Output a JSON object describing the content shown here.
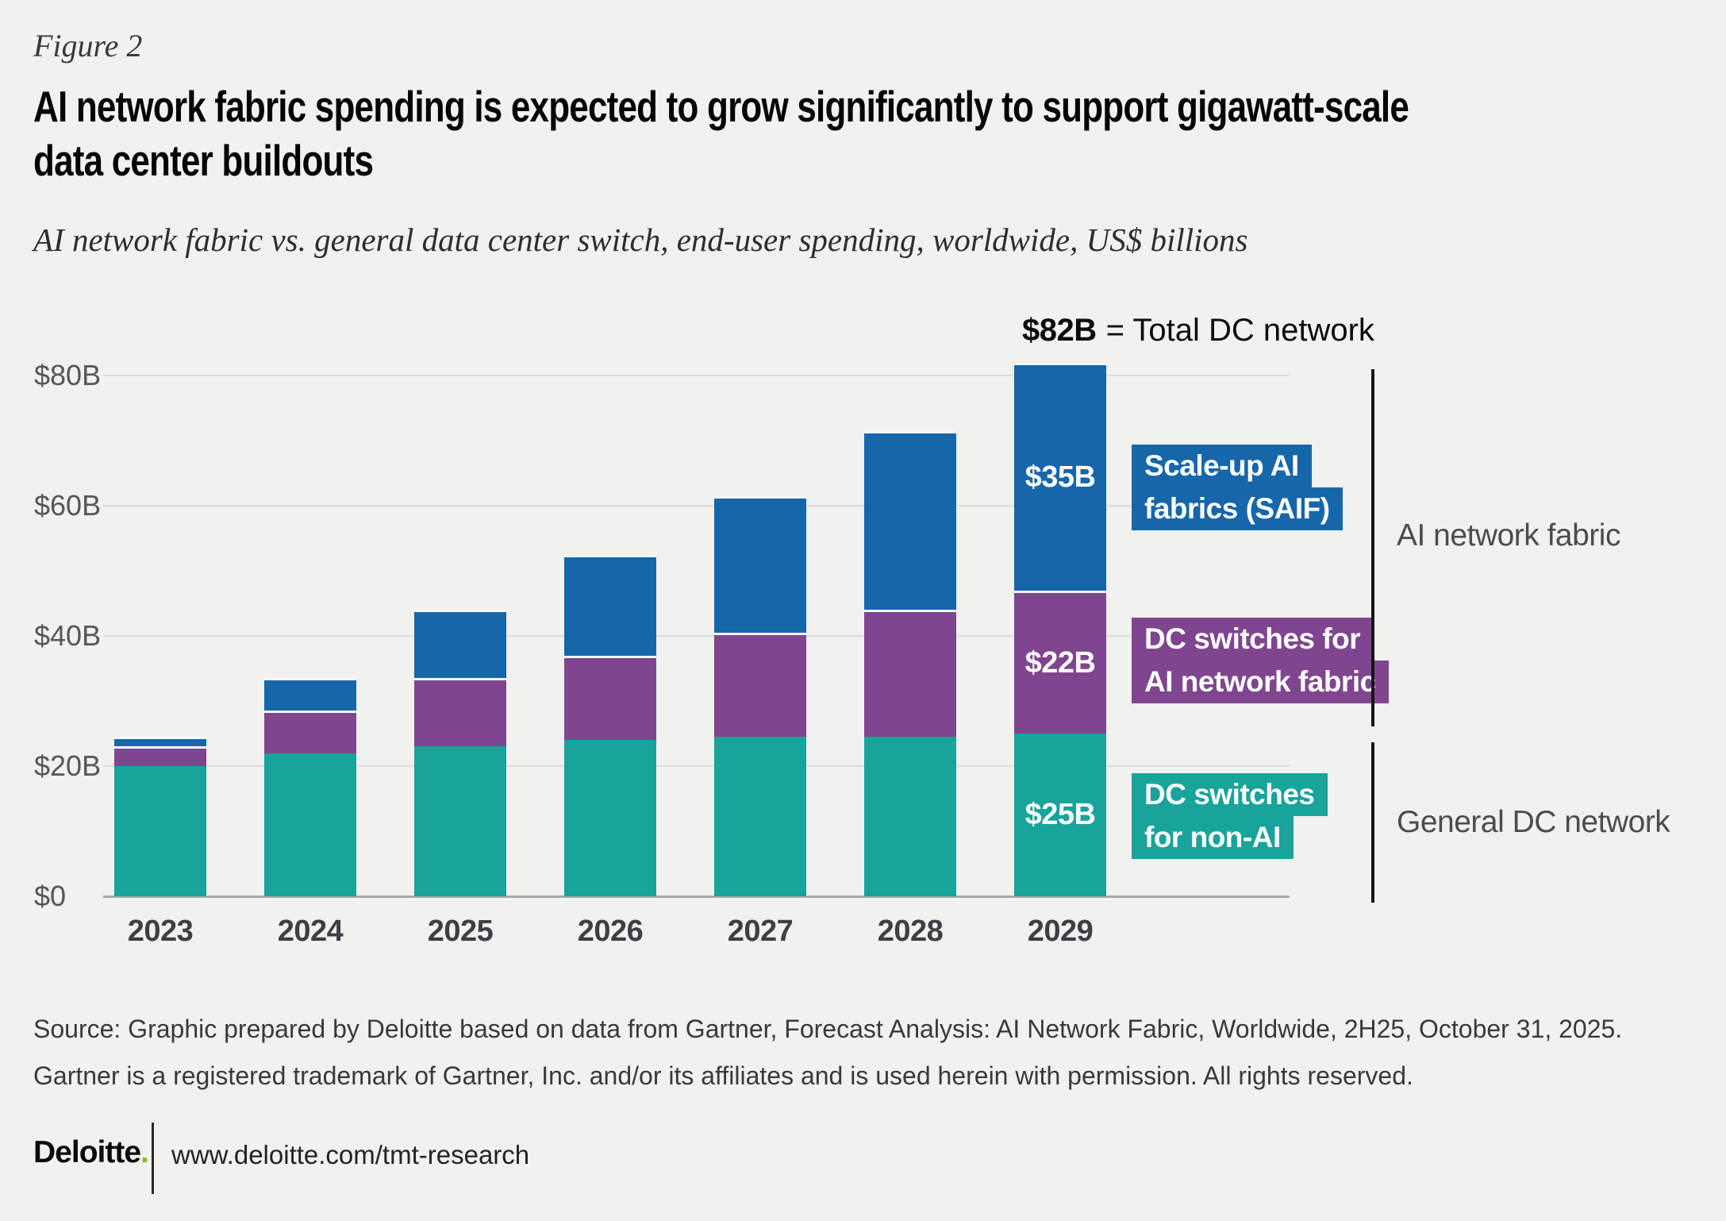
{
  "figure_label": "Figure 2",
  "title_lines": [
    "AI network fabric spending is expected to grow significantly to support gigawatt-scale",
    "data center buildouts"
  ],
  "subtitle": "AI network fabric vs. general data center switch, end-user spending, worldwide, US$ billions",
  "annotation": {
    "value": "$82B",
    "rest": "= Total DC network"
  },
  "chart_data": {
    "type": "bar",
    "stacked": true,
    "title": "AI network fabric vs. general data center switch, end-user spending, worldwide, US$ billions",
    "xlabel": "",
    "ylabel": "US$ billions",
    "ylim": [
      0,
      80
    ],
    "grid": true,
    "categories": [
      "2023",
      "2024",
      "2025",
      "2026",
      "2027",
      "2028",
      "2029"
    ],
    "series": [
      {
        "name": "DC switches for non-AI",
        "color": "#18a39b",
        "values": [
          20,
          22,
          23,
          24,
          24.5,
          24.5,
          25
        ],
        "value_labels": [
          null,
          null,
          null,
          null,
          null,
          null,
          "$25B"
        ]
      },
      {
        "name": "DC switches for AI network fabric",
        "color": "#7f458f",
        "values": [
          3,
          6.5,
          10.5,
          13,
          16,
          19.5,
          22
        ],
        "value_labels": [
          null,
          null,
          null,
          null,
          null,
          null,
          "$22B"
        ]
      },
      {
        "name": "Scale-up AI fabrics (SAIF)",
        "color": "#1666aa",
        "values": [
          1.5,
          5,
          10.5,
          15.5,
          21,
          27.5,
          35
        ],
        "value_labels": [
          null,
          null,
          null,
          null,
          null,
          null,
          "$35B"
        ]
      }
    ],
    "totals_estimated": [
      24.5,
      33.5,
      44,
      52.5,
      61.5,
      71.5,
      82
    ],
    "yticks": [
      {
        "value": 0,
        "label": "$0"
      },
      {
        "value": 20,
        "label": "$20B"
      },
      {
        "value": 40,
        "label": "$40B"
      },
      {
        "value": 60,
        "label": "$60B"
      },
      {
        "value": 80,
        "label": "$80B"
      }
    ],
    "legend_position": "right"
  },
  "legend": [
    {
      "lines": [
        "Scale-up AI",
        "fabrics (SAIF)"
      ],
      "color": "#1666aa"
    },
    {
      "lines": [
        "DC switches for",
        "AI network fabric"
      ],
      "color": "#7f458f"
    },
    {
      "lines": [
        "DC switches",
        "for non-AI"
      ],
      "color": "#18a39b"
    }
  ],
  "brackets": [
    {
      "label": "AI network fabric"
    },
    {
      "label": "General DC network"
    }
  ],
  "source_lines": [
    "Source: Graphic prepared by Deloitte based on data from Gartner, Forecast Analysis: AI Network Fabric, Worldwide, 2H25, October 31, 2025.",
    "Gartner is a registered trademark of Gartner, Inc. and/or its affiliates and is used herein with permission. All rights reserved."
  ],
  "footer": {
    "logo_text": "Deloitte",
    "logo_dot": ".",
    "url": "www.deloitte.com/tmt-research"
  },
  "colors": {
    "background": "#f1f1ef",
    "blue": "#1666aa",
    "purple": "#7f458f",
    "teal": "#18a39b",
    "gridline": "#dcdcdb",
    "axis_baseline": "#a8a8a6",
    "deloitte_green": "#86bc25"
  }
}
